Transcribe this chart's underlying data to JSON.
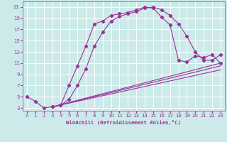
{
  "background_color": "#cceaea",
  "grid_color": "#ffffff",
  "line_color": "#993399",
  "xlabel": "Windchill (Refroidissement éolien,°C)",
  "xticks": [
    0,
    1,
    2,
    3,
    4,
    5,
    6,
    7,
    8,
    9,
    10,
    11,
    12,
    13,
    14,
    15,
    16,
    17,
    18,
    19,
    20,
    21,
    22,
    23
  ],
  "yticks": [
    3,
    5,
    7,
    9,
    11,
    13,
    15,
    17,
    19,
    21
  ],
  "xlim": [
    -0.5,
    23.5
  ],
  "ylim": [
    2.5,
    22.0
  ],
  "curve1_x": [
    0,
    1,
    2,
    3,
    4,
    5,
    6,
    7,
    8,
    9,
    10,
    11,
    12,
    13,
    14,
    15,
    16,
    17,
    18,
    19,
    20,
    21,
    22,
    23
  ],
  "curve1_y": [
    5.0,
    4.2,
    3.0,
    3.2,
    3.5,
    7.0,
    10.5,
    14.0,
    18.0,
    18.5,
    19.5,
    19.8,
    20.0,
    20.5,
    21.0,
    20.8,
    19.2,
    17.8,
    11.5,
    11.2,
    12.3,
    12.0,
    12.5,
    11.0
  ],
  "curve2_x": [
    3,
    4,
    5,
    6,
    7,
    8,
    9,
    10,
    11,
    12,
    13,
    14,
    15,
    16,
    17,
    18,
    19,
    20,
    21,
    22,
    23
  ],
  "curve2_y": [
    3.2,
    3.5,
    4.5,
    7.0,
    10.0,
    14.0,
    16.5,
    18.5,
    19.3,
    19.8,
    20.2,
    20.8,
    21.0,
    20.5,
    19.5,
    18.0,
    15.8,
    13.0,
    11.5,
    11.5,
    12.5
  ],
  "line1_x": [
    3,
    23
  ],
  "line1_y": [
    3.2,
    11.0
  ],
  "line2_x": [
    3,
    23
  ],
  "line2_y": [
    3.2,
    9.8
  ],
  "line3_x": [
    3,
    23
  ],
  "line3_y": [
    3.2,
    10.5
  ]
}
